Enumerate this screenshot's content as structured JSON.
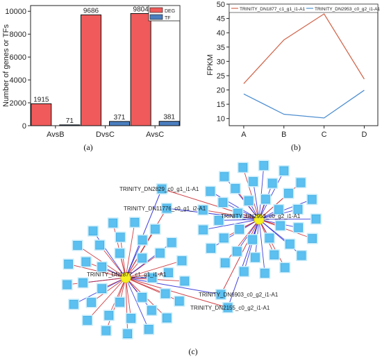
{
  "panels": {
    "a": "(a)",
    "b": "(b)",
    "c": "(c)"
  },
  "chart_data": [
    {
      "type": "bar",
      "panel": "a",
      "categories": [
        "AvsB",
        "DvsC",
        "AvsC"
      ],
      "series": [
        {
          "name": "DEG",
          "values": [
            1915,
            9686,
            9804
          ],
          "color": "#f05a5a"
        },
        {
          "name": "TF",
          "values": [
            71,
            371,
            381
          ],
          "color": "#4a7ebf"
        }
      ],
      "data_labels": [
        "1915",
        "9686",
        "9804",
        "71",
        "371",
        "381"
      ],
      "ylabel": "Number of genes or TFs",
      "ylim": [
        0,
        10500
      ],
      "yticks": [
        0,
        2000,
        4000,
        6000,
        8000,
        10000
      ],
      "legend": "top-right",
      "grid": false
    },
    {
      "type": "line",
      "panel": "b",
      "categories": [
        "A",
        "B",
        "C",
        "D"
      ],
      "series": [
        {
          "name": "TRINITY_DN1877_c1_g1_i1-A1",
          "values": [
            22.2,
            37.5,
            46.6,
            23.8
          ],
          "color": "#d2694f"
        },
        {
          "name": "TRINITY_DN2953_c0_g2_i1-A1",
          "values": [
            18.6,
            11.5,
            10.2,
            19.9
          ],
          "color": "#4e8fd0"
        }
      ],
      "ylabel": "FPKM",
      "ylim": [
        7.5,
        50
      ],
      "yticks": [
        10,
        15,
        20,
        25,
        30,
        35,
        40,
        45,
        50
      ],
      "legend": "top",
      "grid": false
    }
  ],
  "network": {
    "hub_labels": [
      "TRINITY_DN1877_c1_g1_i1-A1",
      "TRINITY_DN2953_c0_g2_i1-A1"
    ],
    "shared_labels": [
      "TRINITY_DN2829_c0_g1_i1-A1",
      "TRINITY_DN11776_c0_g1_i2-A1",
      "TRINITY_DN6903_c0_g2_i1-A1",
      "TRINITY_DN2155_c0_g2_i1-A1"
    ],
    "hub_color": "#f5f020",
    "node_color": "#5cc0f0",
    "positive_edge_color": "#c8282e",
    "negative_edge_color": "#2b2bd6",
    "target_counts": [
      36,
      38
    ]
  }
}
